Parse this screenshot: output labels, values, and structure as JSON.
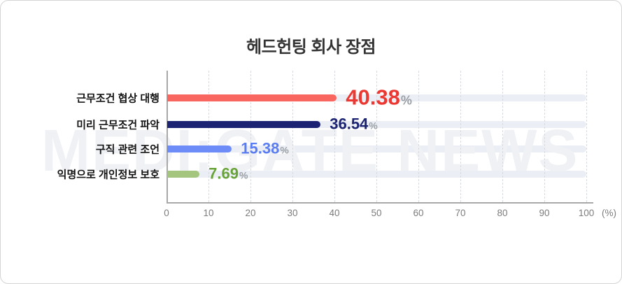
{
  "chart_data": {
    "type": "bar",
    "orientation": "horizontal",
    "title": "헤드헌팅 회사 장점",
    "categories": [
      "근무조건 협상 대행",
      "미리 근무조건 파악",
      "구직 관련 조언",
      "익명으로 개인정보 보호"
    ],
    "values": [
      40.38,
      36.54,
      15.38,
      7.69
    ],
    "value_labels": [
      "40.38",
      "36.54",
      "15.38",
      "7.69"
    ],
    "unit": "%",
    "bar_colors": [
      "#f9655f",
      "#1b2372",
      "#6d8cf7",
      "#a4c57e"
    ],
    "label_colors": [
      "#ec3832",
      "#1b2372",
      "#5b7df2",
      "#69a238"
    ],
    "track_color": "#ebeff5",
    "xlim": [
      0,
      100
    ],
    "x_ticks": [
      0,
      10,
      20,
      30,
      40,
      50,
      60,
      70,
      80,
      90,
      100
    ],
    "x_axis_suffix": "(%)",
    "grid": "vertical-dashed",
    "legend": "none",
    "watermark": "MEDI:GATE NEWS"
  }
}
